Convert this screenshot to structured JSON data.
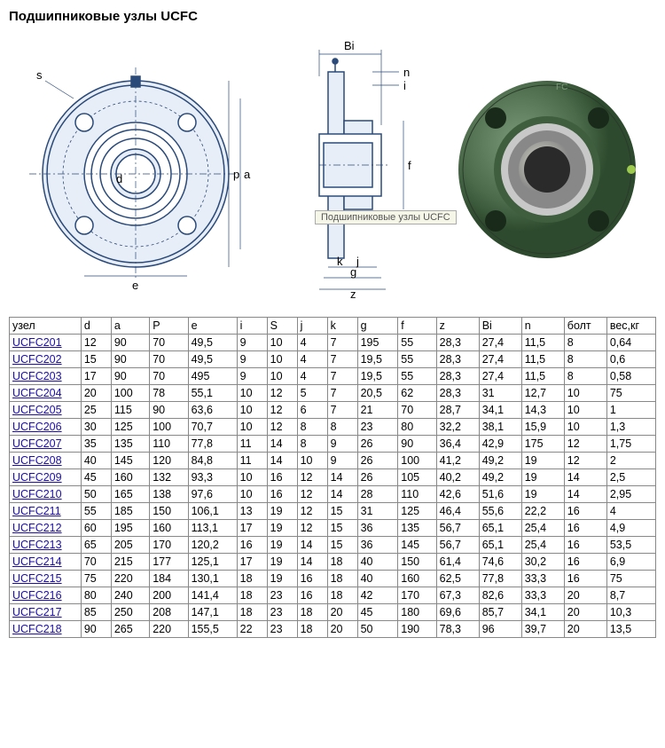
{
  "title": "Подшипниковые узлы UCFC",
  "tooltip": "Подшипниковые узлы UCFC",
  "diagram_labels": {
    "s": "s",
    "p": "p",
    "a": "a",
    "e": "e",
    "d": "d",
    "Bi": "Bi",
    "n": "n",
    "i": "i",
    "f": "f",
    "k": "k",
    "j": "j",
    "g": "g",
    "z": "z"
  },
  "diagram_colors": {
    "line": "#2a4a7a",
    "fill": "#e8eef7",
    "photo_body": "#5a7a5a",
    "photo_dark": "#3a5a3a",
    "photo_ring": "#b8c8b8",
    "photo_chrome": "#c8c8c8"
  },
  "table": {
    "columns": [
      "узел",
      "d",
      "a",
      "P",
      "e",
      "i",
      "S",
      "j",
      "k",
      "g",
      "f",
      "z",
      "Bi",
      "n",
      "болт",
      "вес,кг"
    ],
    "column_widths": [
      "62px",
      "22px",
      "30px",
      "30px",
      "40px",
      "22px",
      "22px",
      "22px",
      "22px",
      "32px",
      "30px",
      "34px",
      "34px",
      "34px",
      "34px",
      "40px"
    ],
    "rows": [
      [
        "UCFC201",
        "12",
        "90",
        "70",
        "49,5",
        "9",
        "10",
        "4",
        "7",
        "195",
        "55",
        "28,3",
        "27,4",
        "11,5",
        "8",
        "0,64"
      ],
      [
        "UCFC202",
        "15",
        "90",
        "70",
        "49,5",
        "9",
        "10",
        "4",
        "7",
        "19,5",
        "55",
        "28,3",
        "27,4",
        "11,5",
        "8",
        "0,6"
      ],
      [
        "UCFC203",
        "17",
        "90",
        "70",
        "495",
        "9",
        "10",
        "4",
        "7",
        "19,5",
        "55",
        "28,3",
        "27,4",
        "11,5",
        "8",
        "0,58"
      ],
      [
        "UCFC204",
        "20",
        "100",
        "78",
        "55,1",
        "10",
        "12",
        "5",
        "7",
        "20,5",
        "62",
        "28,3",
        "31",
        "12,7",
        "10",
        "75"
      ],
      [
        "UCFC205",
        "25",
        "115",
        "90",
        "63,6",
        "10",
        "12",
        "6",
        "7",
        "21",
        "70",
        "28,7",
        "34,1",
        "14,3",
        "10",
        "1"
      ],
      [
        "UCFC206",
        "30",
        "125",
        "100",
        "70,7",
        "10",
        "12",
        "8",
        "8",
        "23",
        "80",
        "32,2",
        "38,1",
        "15,9",
        "10",
        "1,3"
      ],
      [
        "UCFC207",
        "35",
        "135",
        "110",
        "77,8",
        "11",
        "14",
        "8",
        "9",
        "26",
        "90",
        "36,4",
        "42,9",
        "175",
        "12",
        "1,75"
      ],
      [
        "UCFC208",
        "40",
        "145",
        "120",
        "84,8",
        "11",
        "14",
        "10",
        "9",
        "26",
        "100",
        "41,2",
        "49,2",
        "19",
        "12",
        "2"
      ],
      [
        "UCFC209",
        "45",
        "160",
        "132",
        "93,3",
        "10",
        "16",
        "12",
        "14",
        "26",
        "105",
        "40,2",
        "49,2",
        "19",
        "14",
        "2,5"
      ],
      [
        "UCFC210",
        "50",
        "165",
        "138",
        "97,6",
        "10",
        "16",
        "12",
        "14",
        "28",
        "110",
        "42,6",
        "51,6",
        "19",
        "14",
        "2,95"
      ],
      [
        "UCFC211",
        "55",
        "185",
        "150",
        "106,1",
        "13",
        "19",
        "12",
        "15",
        "31",
        "125",
        "46,4",
        "55,6",
        "22,2",
        "16",
        "4"
      ],
      [
        "UCFC212",
        "60",
        "195",
        "160",
        "113,1",
        "17",
        "19",
        "12",
        "15",
        "36",
        "135",
        "56,7",
        "65,1",
        "25,4",
        "16",
        "4,9"
      ],
      [
        "UCFC213",
        "65",
        "205",
        "170",
        "120,2",
        "16",
        "19",
        "14",
        "15",
        "36",
        "145",
        "56,7",
        "65,1",
        "25,4",
        "16",
        "53,5"
      ],
      [
        "UCFC214",
        "70",
        "215",
        "177",
        "125,1",
        "17",
        "19",
        "14",
        "18",
        "40",
        "150",
        "61,4",
        "74,6",
        "30,2",
        "16",
        "6,9"
      ],
      [
        "UCFC215",
        "75",
        "220",
        "184",
        "130,1",
        "18",
        "19",
        "16",
        "18",
        "40",
        "160",
        "62,5",
        "77,8",
        "33,3",
        "16",
        "75"
      ],
      [
        "UCFC216",
        "80",
        "240",
        "200",
        "141,4",
        "18",
        "23",
        "16",
        "18",
        "42",
        "170",
        "67,3",
        "82,6",
        "33,3",
        "20",
        "8,7"
      ],
      [
        "UCFC217",
        "85",
        "250",
        "208",
        "147,1",
        "18",
        "23",
        "18",
        "20",
        "45",
        "180",
        "69,6",
        "85,7",
        "34,1",
        "20",
        "10,3"
      ],
      [
        "UCFC218",
        "90",
        "265",
        "220",
        "155,5",
        "22",
        "23",
        "18",
        "20",
        "50",
        "190",
        "78,3",
        "96",
        "39,7",
        "20",
        "13,5"
      ]
    ]
  }
}
